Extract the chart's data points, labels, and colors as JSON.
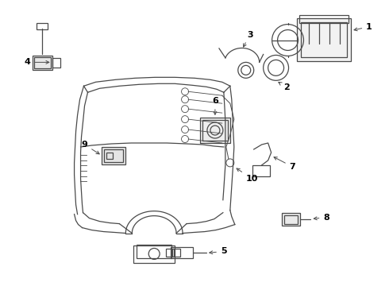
{
  "bg_color": "#ffffff",
  "line_color": "#4a4a4a",
  "fig_width": 4.9,
  "fig_height": 3.6,
  "dpi": 100
}
